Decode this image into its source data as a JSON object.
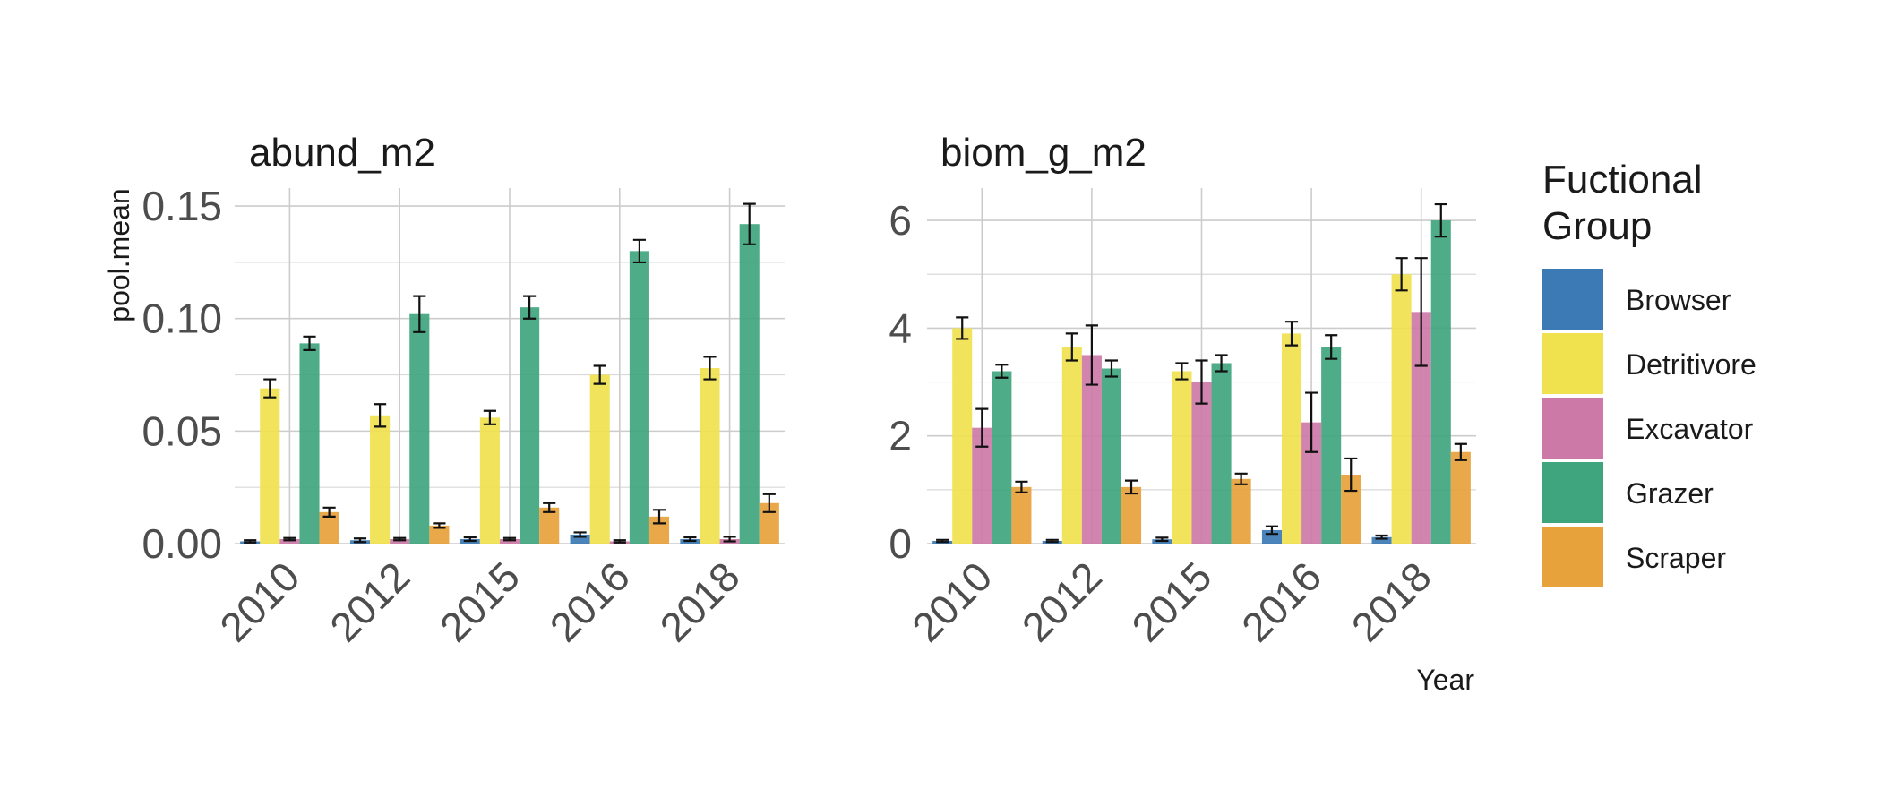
{
  "chart_data": [
    {
      "type": "bar",
      "title": "abund_m2",
      "xlabel": "",
      "ylabel": "pool.mean",
      "ylim": [
        0,
        0.158
      ],
      "yticks": [
        0,
        0.05,
        0.1,
        0.15
      ],
      "ytick_labels": [
        "0.00",
        "0.05",
        "0.10",
        "0.15"
      ],
      "categories": [
        "2010",
        "2012",
        "2015",
        "2016",
        "2018"
      ],
      "series": [
        {
          "name": "Browser",
          "values": [
            0.001,
            0.0015,
            0.002,
            0.004,
            0.002
          ],
          "errors": [
            0.0005,
            0.0008,
            0.0008,
            0.001,
            0.0008
          ]
        },
        {
          "name": "Detritivore",
          "values": [
            0.069,
            0.057,
            0.056,
            0.075,
            0.078
          ],
          "errors": [
            0.004,
            0.005,
            0.003,
            0.004,
            0.005
          ]
        },
        {
          "name": "Excavator",
          "values": [
            0.002,
            0.002,
            0.002,
            0.001,
            0.002
          ],
          "errors": [
            0.0005,
            0.0005,
            0.0005,
            0.0005,
            0.001
          ]
        },
        {
          "name": "Grazer",
          "values": [
            0.089,
            0.102,
            0.105,
            0.13,
            0.142
          ],
          "errors": [
            0.003,
            0.008,
            0.005,
            0.005,
            0.009
          ]
        },
        {
          "name": "Scraper",
          "values": [
            0.014,
            0.008,
            0.016,
            0.012,
            0.018
          ],
          "errors": [
            0.002,
            0.001,
            0.002,
            0.003,
            0.004
          ]
        }
      ]
    },
    {
      "type": "bar",
      "title": "biom_g_m2",
      "xlabel": "Year",
      "ylabel": "",
      "ylim": [
        0,
        6.6
      ],
      "yticks": [
        0,
        2,
        4,
        6
      ],
      "ytick_labels": [
        "0",
        "2",
        "4",
        "6"
      ],
      "categories": [
        "2010",
        "2012",
        "2015",
        "2016",
        "2018"
      ],
      "series": [
        {
          "name": "Browser",
          "values": [
            0.05,
            0.05,
            0.08,
            0.25,
            0.12
          ],
          "errors": [
            0.02,
            0.02,
            0.03,
            0.07,
            0.03
          ]
        },
        {
          "name": "Detritivore",
          "values": [
            4.0,
            3.65,
            3.2,
            3.9,
            5.0
          ],
          "errors": [
            0.2,
            0.25,
            0.15,
            0.22,
            0.3
          ]
        },
        {
          "name": "Excavator",
          "values": [
            2.15,
            3.5,
            3.0,
            2.25,
            4.3
          ],
          "errors": [
            0.35,
            0.55,
            0.4,
            0.55,
            1.0
          ]
        },
        {
          "name": "Grazer",
          "values": [
            3.2,
            3.25,
            3.35,
            3.65,
            6.0
          ],
          "errors": [
            0.12,
            0.15,
            0.15,
            0.22,
            0.3
          ]
        },
        {
          "name": "Scraper",
          "values": [
            1.05,
            1.05,
            1.2,
            1.28,
            1.7
          ],
          "errors": [
            0.1,
            0.12,
            0.1,
            0.3,
            0.15
          ]
        }
      ]
    }
  ],
  "legend": {
    "title": "Fuctional\nGroup",
    "items": [
      {
        "name": "Browser",
        "color": "#3b7ab4"
      },
      {
        "name": "Detritivore",
        "color": "#f0e24e"
      },
      {
        "name": "Excavator",
        "color": "#cc79a7"
      },
      {
        "name": "Grazer",
        "color": "#3fa57e"
      },
      {
        "name": "Scraper",
        "color": "#e7a23b"
      }
    ]
  }
}
